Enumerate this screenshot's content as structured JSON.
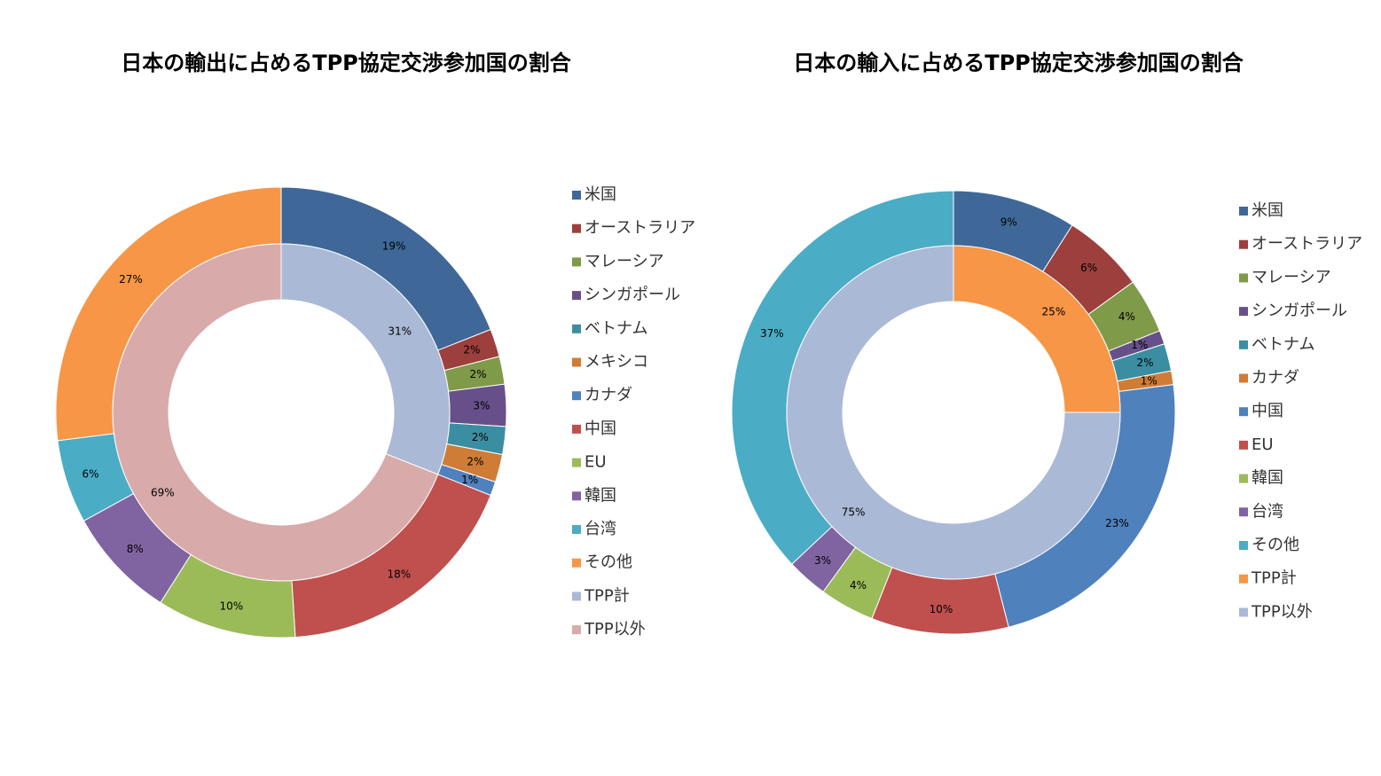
{
  "chart_data": [
    {
      "type": "donut",
      "title": "日本の輸出に占めるTPP協定交渉参加国の割合",
      "rings": [
        {
          "categories": [
            "米国",
            "オーストラリア",
            "マレーシア",
            "シンガポール",
            "ベトナム",
            "メキシコ",
            "カナダ",
            "中国",
            "EU",
            "韓国",
            "台湾",
            "その他"
          ],
          "values": [
            19,
            2,
            2,
            3,
            2,
            2,
            1,
            18,
            10,
            8,
            6,
            27
          ],
          "value_labels": [
            "19%",
            "2%",
            "2%",
            "3%",
            "2%",
            "2%",
            "1%",
            "18%",
            "10%",
            "8%",
            "6%",
            "27%"
          ],
          "colors": [
            "#3f6899",
            "#9c3f3d",
            "#7f9a48",
            "#67508a",
            "#3b8ea2",
            "#cf7c36",
            "#4f81bd",
            "#c0504d",
            "#9bbb59",
            "#8064a2",
            "#4bacc6",
            "#f79646"
          ]
        },
        {
          "categories": [
            "TPP計",
            "TPP以外"
          ],
          "values": [
            31,
            69
          ],
          "value_labels": [
            "31%",
            "69%"
          ],
          "colors": [
            "#aab9d6",
            "#d9aaaa"
          ]
        }
      ]
    },
    {
      "type": "donut",
      "title": "日本の輸入に占めるTPP協定交渉参加国の割合",
      "rings": [
        {
          "categories": [
            "米国",
            "オーストラリア",
            "マレーシア",
            "シンガポール",
            "ベトナム",
            "カナダ",
            "中国",
            "EU",
            "韓国",
            "台湾",
            "その他"
          ],
          "values": [
            9,
            6,
            4,
            1,
            2,
            1,
            23,
            10,
            4,
            3,
            37
          ],
          "value_labels": [
            "9%",
            "6%",
            "4%",
            "1%",
            "2%",
            "1%",
            "23%",
            "10%",
            "4%",
            "3%",
            "37%"
          ],
          "colors": [
            "#3f6899",
            "#9c3f3d",
            "#7f9a48",
            "#67508a",
            "#3b8ea2",
            "#cf7c36",
            "#4f81bd",
            "#c0504d",
            "#9bbb59",
            "#8064a2",
            "#4bacc6"
          ]
        },
        {
          "categories": [
            "TPP計",
            "TPP以外"
          ],
          "values": [
            25,
            75
          ],
          "value_labels": [
            "25%",
            "75%"
          ],
          "colors": [
            "#f79646",
            "#aab9d6"
          ]
        }
      ]
    }
  ]
}
